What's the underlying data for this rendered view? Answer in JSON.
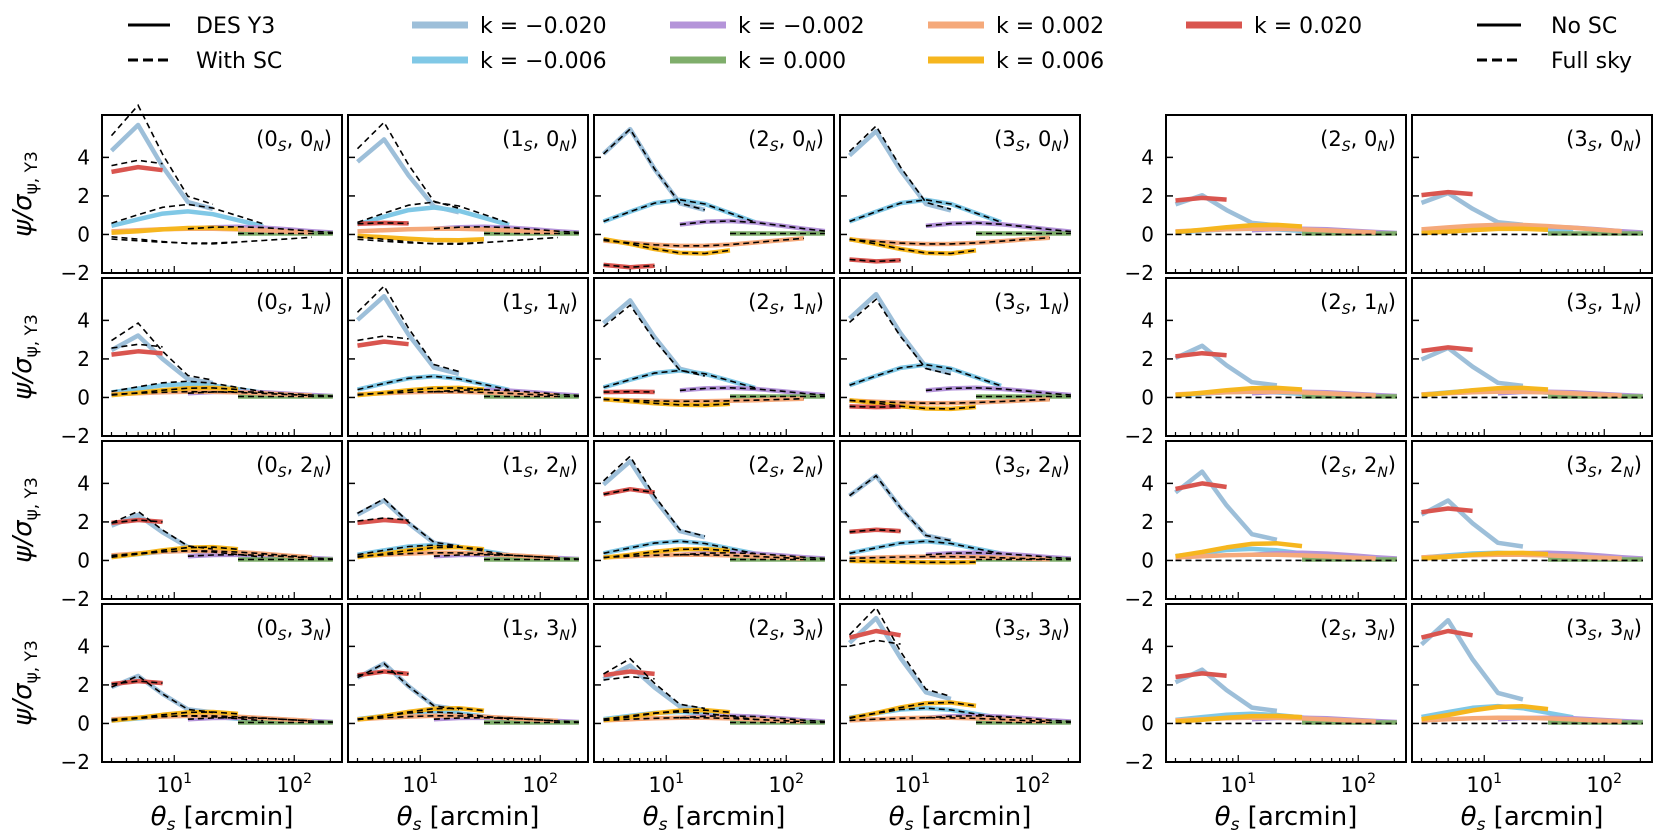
{
  "chart_data": {
    "type": "line",
    "figure_layout": "4x6 panel grid (4 rows, two groups of columns: 4 + 2)",
    "xlabel": "θs [arcmin]",
    "ylabel": "ψ/σψ, Y3",
    "x_scale": "log",
    "xlim": [
      2.5,
      250
    ],
    "ylim": [
      -2,
      6.2
    ],
    "x_ticks": [
      10,
      100
    ],
    "x_tick_labels": [
      "10^1",
      "10^2"
    ],
    "y_ticks": [
      -2,
      0,
      2,
      4
    ],
    "y_tick_labels": [
      "−2",
      "0",
      "2",
      "4"
    ],
    "legend_left": {
      "styles": [
        {
          "label": "DES Y3",
          "dash": "solid"
        },
        {
          "label": "With SC",
          "dash": "dashed"
        }
      ],
      "colors": [
        {
          "label": "k = −0.020",
          "color": "#9dbfd9"
        },
        {
          "label": "k = −0.006",
          "color": "#80c8e6"
        },
        {
          "label": "k = −0.002",
          "color": "#b494d9"
        },
        {
          "label": "k = 0.000",
          "color": "#7fae6b"
        },
        {
          "label": "k = 0.002",
          "color": "#f5a97a"
        },
        {
          "label": "k = 0.006",
          "color": "#f6b61e"
        },
        {
          "label": "k = 0.020",
          "color": "#d9554f"
        }
      ]
    },
    "legend_right": [
      {
        "label": "No SC",
        "dash": "solid"
      },
      {
        "label": "Full sky",
        "dash": "dashed"
      }
    ],
    "x": [
      3,
      5,
      8,
      13,
      21,
      34,
      55,
      90,
      140,
      210
    ],
    "series_ranges": [
      {
        "k": "−0.020",
        "from": 0,
        "to": 4
      },
      {
        "k": "−0.006",
        "from": 0,
        "to": 6
      },
      {
        "k": "−0.002",
        "from": 3,
        "to": 9
      },
      {
        "k": "0.000",
        "from": 5,
        "to": 9
      },
      {
        "k": "0.002",
        "from": 0,
        "to": 8
      },
      {
        "k": "0.006",
        "from": 0,
        "to": 5
      },
      {
        "k": "0.020",
        "from": 0,
        "to": 2
      }
    ],
    "panels": [
      {
        "label": "(0S, 0N)",
        "group": "left",
        "row": 0,
        "col": 0,
        "peaks": [
          5.3,
          1.2,
          0.4,
          0.05,
          0.3,
          0.35,
          3.5
        ],
        "dashed_scale": [
          1.18,
          1.3,
          1,
          1,
          -1.5,
          -1.4,
          1.1
        ]
      },
      {
        "label": "(1S, 0N)",
        "group": "left",
        "row": 0,
        "col": 1,
        "peaks": [
          4.6,
          1.4,
          0.4,
          0.05,
          0.3,
          -0.3,
          0.6
        ],
        "dashed_scale": [
          1.18,
          1.2,
          1,
          1,
          -1.6,
          1.7,
          1
        ]
      },
      {
        "label": "(2S, 0N)",
        "group": "left",
        "row": 0,
        "col": 2,
        "peaks": [
          5.1,
          1.8,
          0.7,
          0.05,
          -0.6,
          -1,
          -1.7
        ],
        "dashed_scale": [
          1,
          1,
          1,
          1,
          1,
          1,
          1
        ]
      },
      {
        "label": "(3S, 0N)",
        "group": "left",
        "row": 0,
        "col": 3,
        "peaks": [
          5,
          1.8,
          0.6,
          0.05,
          -0.5,
          -1,
          -1.4
        ],
        "dashed_scale": [
          1.05,
          1,
          1,
          1,
          1,
          1,
          1
        ]
      },
      {
        "label": "(2S, 0N)",
        "group": "right",
        "row": 0,
        "col": 0,
        "peaks": [
          1.9,
          0.3,
          0.3,
          0.05,
          0.3,
          0.5,
          1.9
        ],
        "dashed_scale": [
          0,
          0,
          0,
          0,
          0,
          0,
          0
        ]
      },
      {
        "label": "(3S, 0N)",
        "group": "right",
        "row": 0,
        "col": 1,
        "peaks": [
          2,
          0.4,
          0.4,
          0.05,
          0.5,
          0.3,
          2.2
        ],
        "dashed_scale": [
          0,
          0,
          0,
          0,
          0,
          0,
          0
        ]
      },
      {
        "label": "(0S, 1N)",
        "group": "left",
        "row": 1,
        "col": 0,
        "peaks": [
          3,
          0.7,
          0.3,
          0.05,
          0.3,
          0.5,
          2.4
        ],
        "dashed_scale": [
          1.2,
          1.2,
          1,
          1,
          1,
          1,
          1.15
        ]
      },
      {
        "label": "(1S, 1N)",
        "group": "left",
        "row": 1,
        "col": 1,
        "peaks": [
          4.9,
          1.1,
          0.4,
          0.05,
          0.3,
          0.5,
          2.9
        ],
        "dashed_scale": [
          1.1,
          1,
          1,
          1,
          1,
          1,
          1.1
        ]
      },
      {
        "label": "(2S, 1N)",
        "group": "left",
        "row": 1,
        "col": 2,
        "peaks": [
          4.7,
          1.4,
          0.5,
          0.05,
          -0.2,
          -0.4,
          0.3
        ],
        "dashed_scale": [
          0.95,
          1,
          1,
          1,
          1,
          1,
          1
        ]
      },
      {
        "label": "(3S, 1N)",
        "group": "left",
        "row": 1,
        "col": 3,
        "peaks": [
          5,
          1.7,
          0.5,
          0.05,
          -0.3,
          -0.6,
          -0.5
        ],
        "dashed_scale": [
          0.95,
          1,
          1,
          1,
          1,
          1,
          1
        ]
      },
      {
        "label": "(2S, 1N)",
        "group": "right",
        "row": 1,
        "col": 0,
        "peaks": [
          2.5,
          0.3,
          0.3,
          0.05,
          0.3,
          0.5,
          2.3
        ],
        "dashed_scale": [
          0,
          0,
          0,
          0,
          0,
          0,
          0
        ]
      },
      {
        "label": "(3S, 1N)",
        "group": "right",
        "row": 1,
        "col": 1,
        "peaks": [
          2.4,
          0.4,
          0.3,
          0.05,
          0.3,
          0.5,
          2.6
        ],
        "dashed_scale": [
          0,
          0,
          0,
          0,
          0,
          0,
          0
        ]
      },
      {
        "label": "(0S, 2N)",
        "group": "left",
        "row": 2,
        "col": 0,
        "peaks": [
          2.2,
          0.5,
          0.3,
          0.05,
          0.5,
          0.7,
          2.1
        ],
        "dashed_scale": [
          1.08,
          1,
          1,
          1,
          1,
          1,
          1
        ]
      },
      {
        "label": "(1S, 2N)",
        "group": "left",
        "row": 2,
        "col": 1,
        "peaks": [
          2.9,
          0.8,
          0.3,
          0.05,
          0.4,
          0.7,
          2.1
        ],
        "dashed_scale": [
          1.03,
          1,
          1,
          1,
          1,
          1,
          1.05
        ]
      },
      {
        "label": "(2S, 2N)",
        "group": "left",
        "row": 2,
        "col": 2,
        "peaks": [
          4.8,
          1,
          0.4,
          0.05,
          0.3,
          0.6,
          3.7
        ],
        "dashed_scale": [
          1.05,
          1,
          1,
          1,
          1,
          1,
          1
        ]
      },
      {
        "label": "(3S, 2N)",
        "group": "left",
        "row": 2,
        "col": 3,
        "peaks": [
          4.1,
          1,
          0.4,
          0.05,
          0.2,
          -0.1,
          1.6
        ],
        "dashed_scale": [
          1,
          1,
          1,
          1,
          1,
          1,
          1
        ]
      },
      {
        "label": "(2S, 2N)",
        "group": "right",
        "row": 2,
        "col": 0,
        "peaks": [
          4.3,
          0.6,
          0.4,
          0.05,
          0.3,
          0.9,
          4
        ],
        "dashed_scale": [
          0,
          0,
          0,
          0,
          0,
          0,
          0
        ]
      },
      {
        "label": "(3S, 2N)",
        "group": "right",
        "row": 2,
        "col": 1,
        "peaks": [
          2.9,
          0.4,
          0.4,
          0.05,
          0.3,
          0.4,
          2.7
        ],
        "dashed_scale": [
          0,
          0,
          0,
          0,
          0,
          0,
          0
        ]
      },
      {
        "label": "(0S, 3N)",
        "group": "left",
        "row": 3,
        "col": 0,
        "peaks": [
          2.3,
          0.4,
          0.3,
          0.05,
          0.4,
          0.6,
          2.2
        ],
        "dashed_scale": [
          1,
          1,
          1,
          1,
          1,
          1,
          1
        ]
      },
      {
        "label": "(1S, 3N)",
        "group": "left",
        "row": 3,
        "col": 1,
        "peaks": [
          2.9,
          0.6,
          0.3,
          0.05,
          0.4,
          0.8,
          2.7
        ],
        "dashed_scale": [
          1,
          1,
          1,
          1,
          1,
          1,
          1
        ]
      },
      {
        "label": "(2S, 3N)",
        "group": "left",
        "row": 3,
        "col": 2,
        "peaks": [
          2.8,
          0.6,
          0.4,
          0.05,
          0.3,
          0.7,
          2.7
        ],
        "dashed_scale": [
          1.12,
          1,
          1,
          1,
          1,
          1,
          0.9
        ]
      },
      {
        "label": "(3S, 3N)",
        "group": "left",
        "row": 3,
        "col": 3,
        "peaks": [
          5.1,
          0.8,
          0.4,
          0.05,
          0.3,
          1.1,
          4.8
        ],
        "dashed_scale": [
          1.1,
          1,
          1,
          1,
          1,
          1,
          0.9
        ]
      },
      {
        "label": "(2S, 3N)",
        "group": "right",
        "row": 3,
        "col": 0,
        "peaks": [
          2.6,
          0.5,
          0.3,
          0.05,
          0.3,
          0.4,
          2.6
        ],
        "dashed_scale": [
          0,
          0,
          0,
          0,
          0,
          0,
          0
        ]
      },
      {
        "label": "(3S, 3N)",
        "group": "right",
        "row": 3,
        "col": 1,
        "peaks": [
          5,
          0.9,
          0.3,
          0.05,
          0.3,
          0.9,
          4.8
        ],
        "dashed_scale": [
          0,
          0,
          0,
          0,
          0,
          0,
          0
        ]
      }
    ]
  }
}
